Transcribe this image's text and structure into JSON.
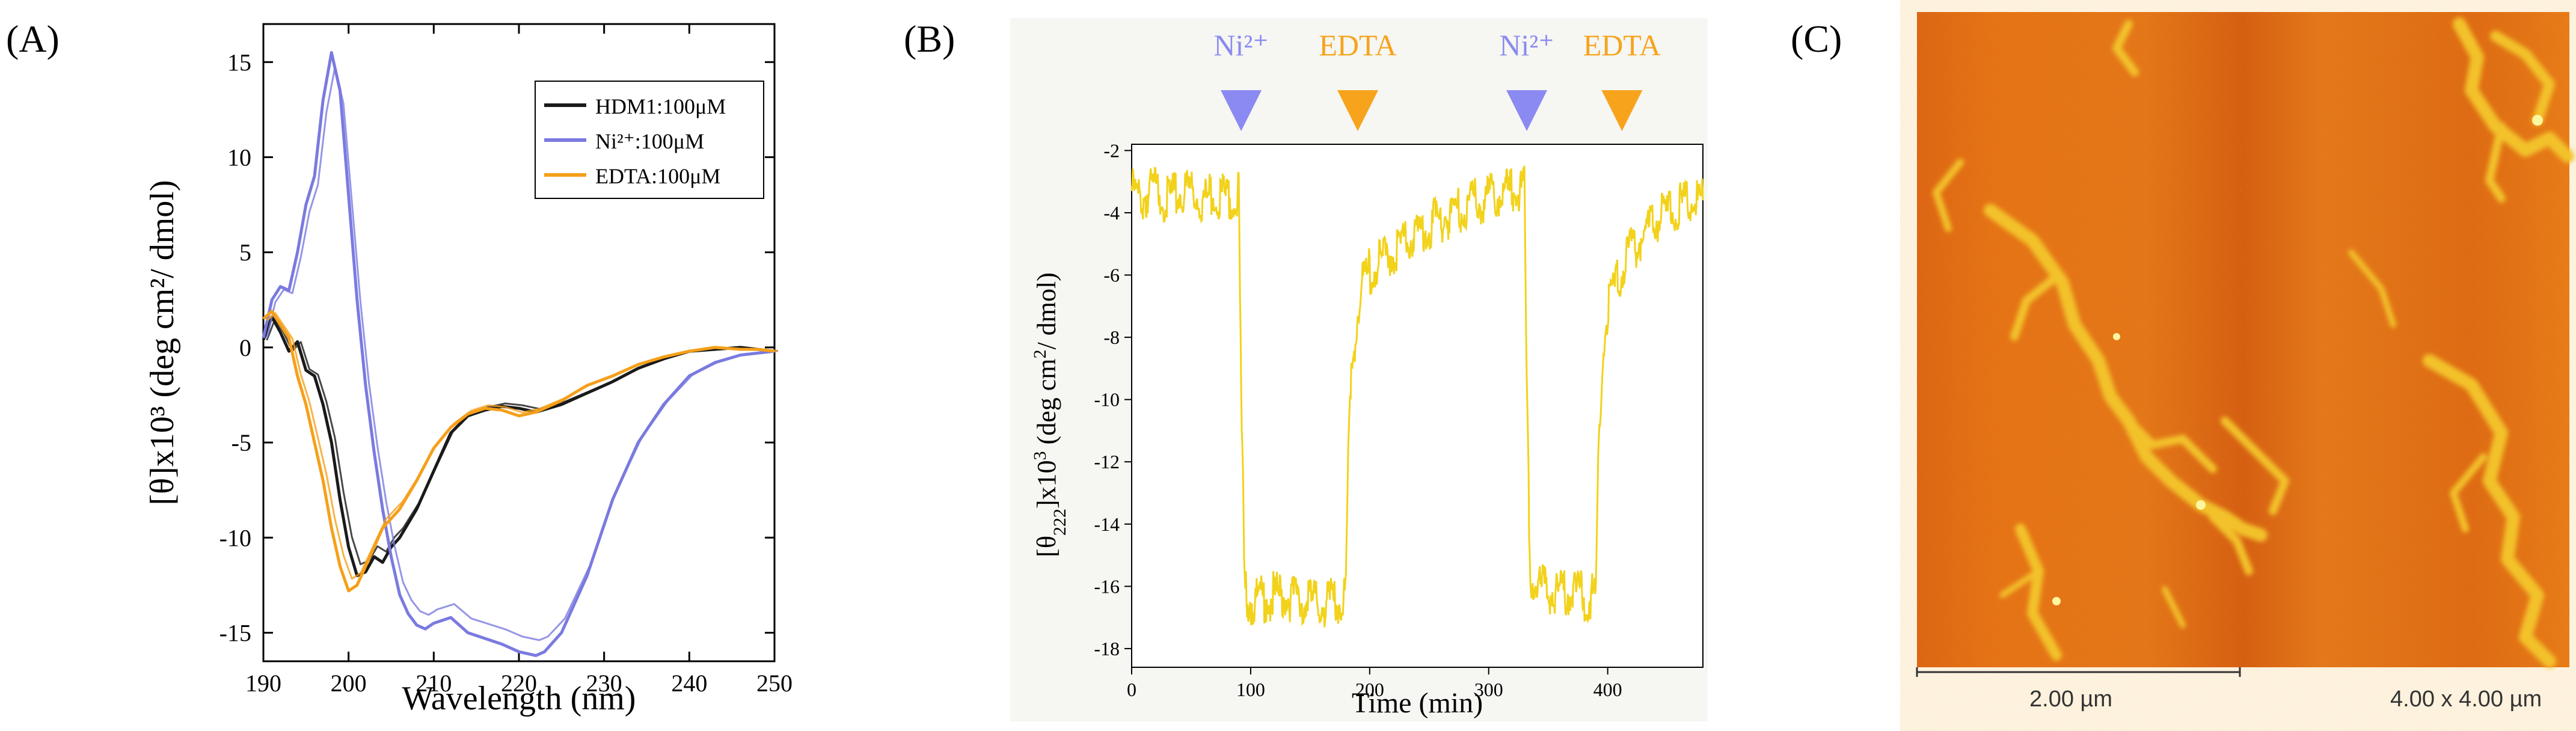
{
  "panels": {
    "a": {
      "label": "(A)"
    },
    "b": {
      "label": "(B)"
    },
    "c": {
      "label": "(C)"
    }
  },
  "chart_data": [
    {
      "type": "line",
      "id": "A",
      "xlabel": "Wavelength (nm)",
      "ylabel": "[θ]x10³ (deg cm²/ dmol)",
      "xlim": [
        190,
        250
      ],
      "ylim": [
        -16.5,
        17
      ],
      "xticks": [
        190,
        200,
        210,
        220,
        230,
        240,
        250
      ],
      "yticks": [
        -15,
        -10,
        -5,
        0,
        5,
        10,
        15
      ],
      "legend_position": "top-right",
      "series": [
        {
          "name": "HDM1:100μM",
          "color": "#1a1a1a",
          "x": [
            190,
            191,
            192,
            193,
            194,
            195,
            196,
            197,
            198,
            199,
            200,
            201,
            202,
            203,
            204,
            205,
            206,
            208,
            210,
            212,
            214,
            216,
            218,
            220,
            222,
            225,
            228,
            231,
            234,
            237,
            240,
            243,
            246,
            248,
            250
          ],
          "y": [
            0.4,
            1.6,
            0.8,
            -0.2,
            0.3,
            -1.2,
            -1.5,
            -3.0,
            -5.0,
            -8.0,
            -10.5,
            -12.0,
            -11.8,
            -11.0,
            -11.3,
            -10.5,
            -10.0,
            -8.5,
            -6.5,
            -4.5,
            -3.6,
            -3.3,
            -3.1,
            -3.2,
            -3.4,
            -3.0,
            -2.4,
            -1.8,
            -1.1,
            -0.6,
            -0.2,
            -0.1,
            0.0,
            -0.1,
            -0.2
          ]
        },
        {
          "name": "Ni²⁺:100μM",
          "color": "#7a7ae0",
          "x": [
            190,
            191,
            192,
            193,
            194,
            195,
            196,
            197,
            198,
            199,
            200,
            201,
            202,
            203,
            204,
            205,
            206,
            207,
            208,
            209,
            210,
            212,
            214,
            216,
            218,
            220,
            222,
            223,
            225,
            228,
            231,
            234,
            237,
            240,
            243,
            246,
            250
          ],
          "y": [
            0.5,
            2.5,
            3.2,
            3.0,
            5.0,
            7.5,
            9.0,
            13.0,
            15.5,
            13.5,
            8.0,
            2.5,
            -2.0,
            -5.5,
            -8.5,
            -11.0,
            -13.0,
            -14.0,
            -14.6,
            -14.8,
            -14.5,
            -14.2,
            -15.0,
            -15.3,
            -15.6,
            -16.0,
            -16.2,
            -16.0,
            -15.0,
            -12.0,
            -8.0,
            -5.0,
            -3.0,
            -1.5,
            -0.8,
            -0.4,
            -0.2
          ]
        },
        {
          "name": "EDTA:100μM",
          "color": "#f5a01a",
          "x": [
            190,
            191,
            192,
            193,
            194,
            195,
            196,
            197,
            198,
            199,
            200,
            201,
            202,
            203,
            204,
            205,
            206,
            208,
            210,
            212,
            214,
            216,
            218,
            220,
            222,
            225,
            228,
            231,
            234,
            237,
            240,
            243,
            246,
            248,
            250
          ],
          "y": [
            1.5,
            1.9,
            1.2,
            0.5,
            -1.5,
            -3.0,
            -5.0,
            -7.0,
            -9.5,
            -11.5,
            -12.8,
            -12.5,
            -11.5,
            -10.5,
            -9.5,
            -9.0,
            -8.5,
            -7.0,
            -5.3,
            -4.2,
            -3.5,
            -3.2,
            -3.3,
            -3.6,
            -3.4,
            -2.8,
            -2.0,
            -1.5,
            -0.9,
            -0.5,
            -0.2,
            0.0,
            -0.1,
            -0.1,
            -0.2
          ]
        }
      ]
    },
    {
      "type": "line",
      "id": "B",
      "xlabel": "Time (min)",
      "ylabel": "[θ222]x10³ (deg cm²/ dmol)",
      "xlim": [
        0,
        480
      ],
      "ylim": [
        -18.6,
        -1.8
      ],
      "xticks": [
        0,
        100,
        200,
        300,
        400
      ],
      "yticks": [
        -18,
        -16,
        -14,
        -12,
        -10,
        -8,
        -6,
        -4,
        -2
      ],
      "series": [
        {
          "name": "",
          "color": "#f2d21a",
          "x": [
            0,
            10,
            20,
            30,
            40,
            50,
            60,
            70,
            80,
            90,
            92,
            95,
            100,
            120,
            140,
            160,
            180,
            182,
            185,
            190,
            195,
            200,
            210,
            220,
            240,
            260,
            280,
            300,
            320,
            330,
            332,
            335,
            340,
            360,
            380,
            390,
            392,
            395,
            400,
            410,
            420,
            440,
            460,
            480
          ],
          "y": [
            -3.3,
            -3.5,
            -3.2,
            -3.6,
            -3.4,
            -3.3,
            -3.6,
            -3.4,
            -3.5,
            -3.4,
            -10.0,
            -16.2,
            -16.5,
            -16.3,
            -16.4,
            -16.6,
            -16.4,
            -12.0,
            -9.0,
            -7.0,
            -6.2,
            -5.9,
            -5.6,
            -5.2,
            -4.7,
            -4.2,
            -3.8,
            -3.5,
            -3.3,
            -3.2,
            -10.0,
            -15.8,
            -16.0,
            -16.2,
            -16.3,
            -16.4,
            -12.0,
            -9.0,
            -7.0,
            -6.0,
            -5.2,
            -4.2,
            -3.8,
            -3.6
          ]
        }
      ],
      "markers": [
        {
          "label": "Ni²⁺",
          "time": 92,
          "color": "#8a8af2"
        },
        {
          "label": "EDTA",
          "time": 190,
          "color": "#f7a31c"
        },
        {
          "label": "Ni²⁺",
          "time": 332,
          "color": "#8a8af2"
        },
        {
          "label": "EDTA",
          "time": 412,
          "color": "#f7a31c"
        }
      ]
    }
  ],
  "afm": {
    "scale_bar_label": "2.00 µm",
    "scan_size_label": "4.00 x 4.00 µm"
  }
}
